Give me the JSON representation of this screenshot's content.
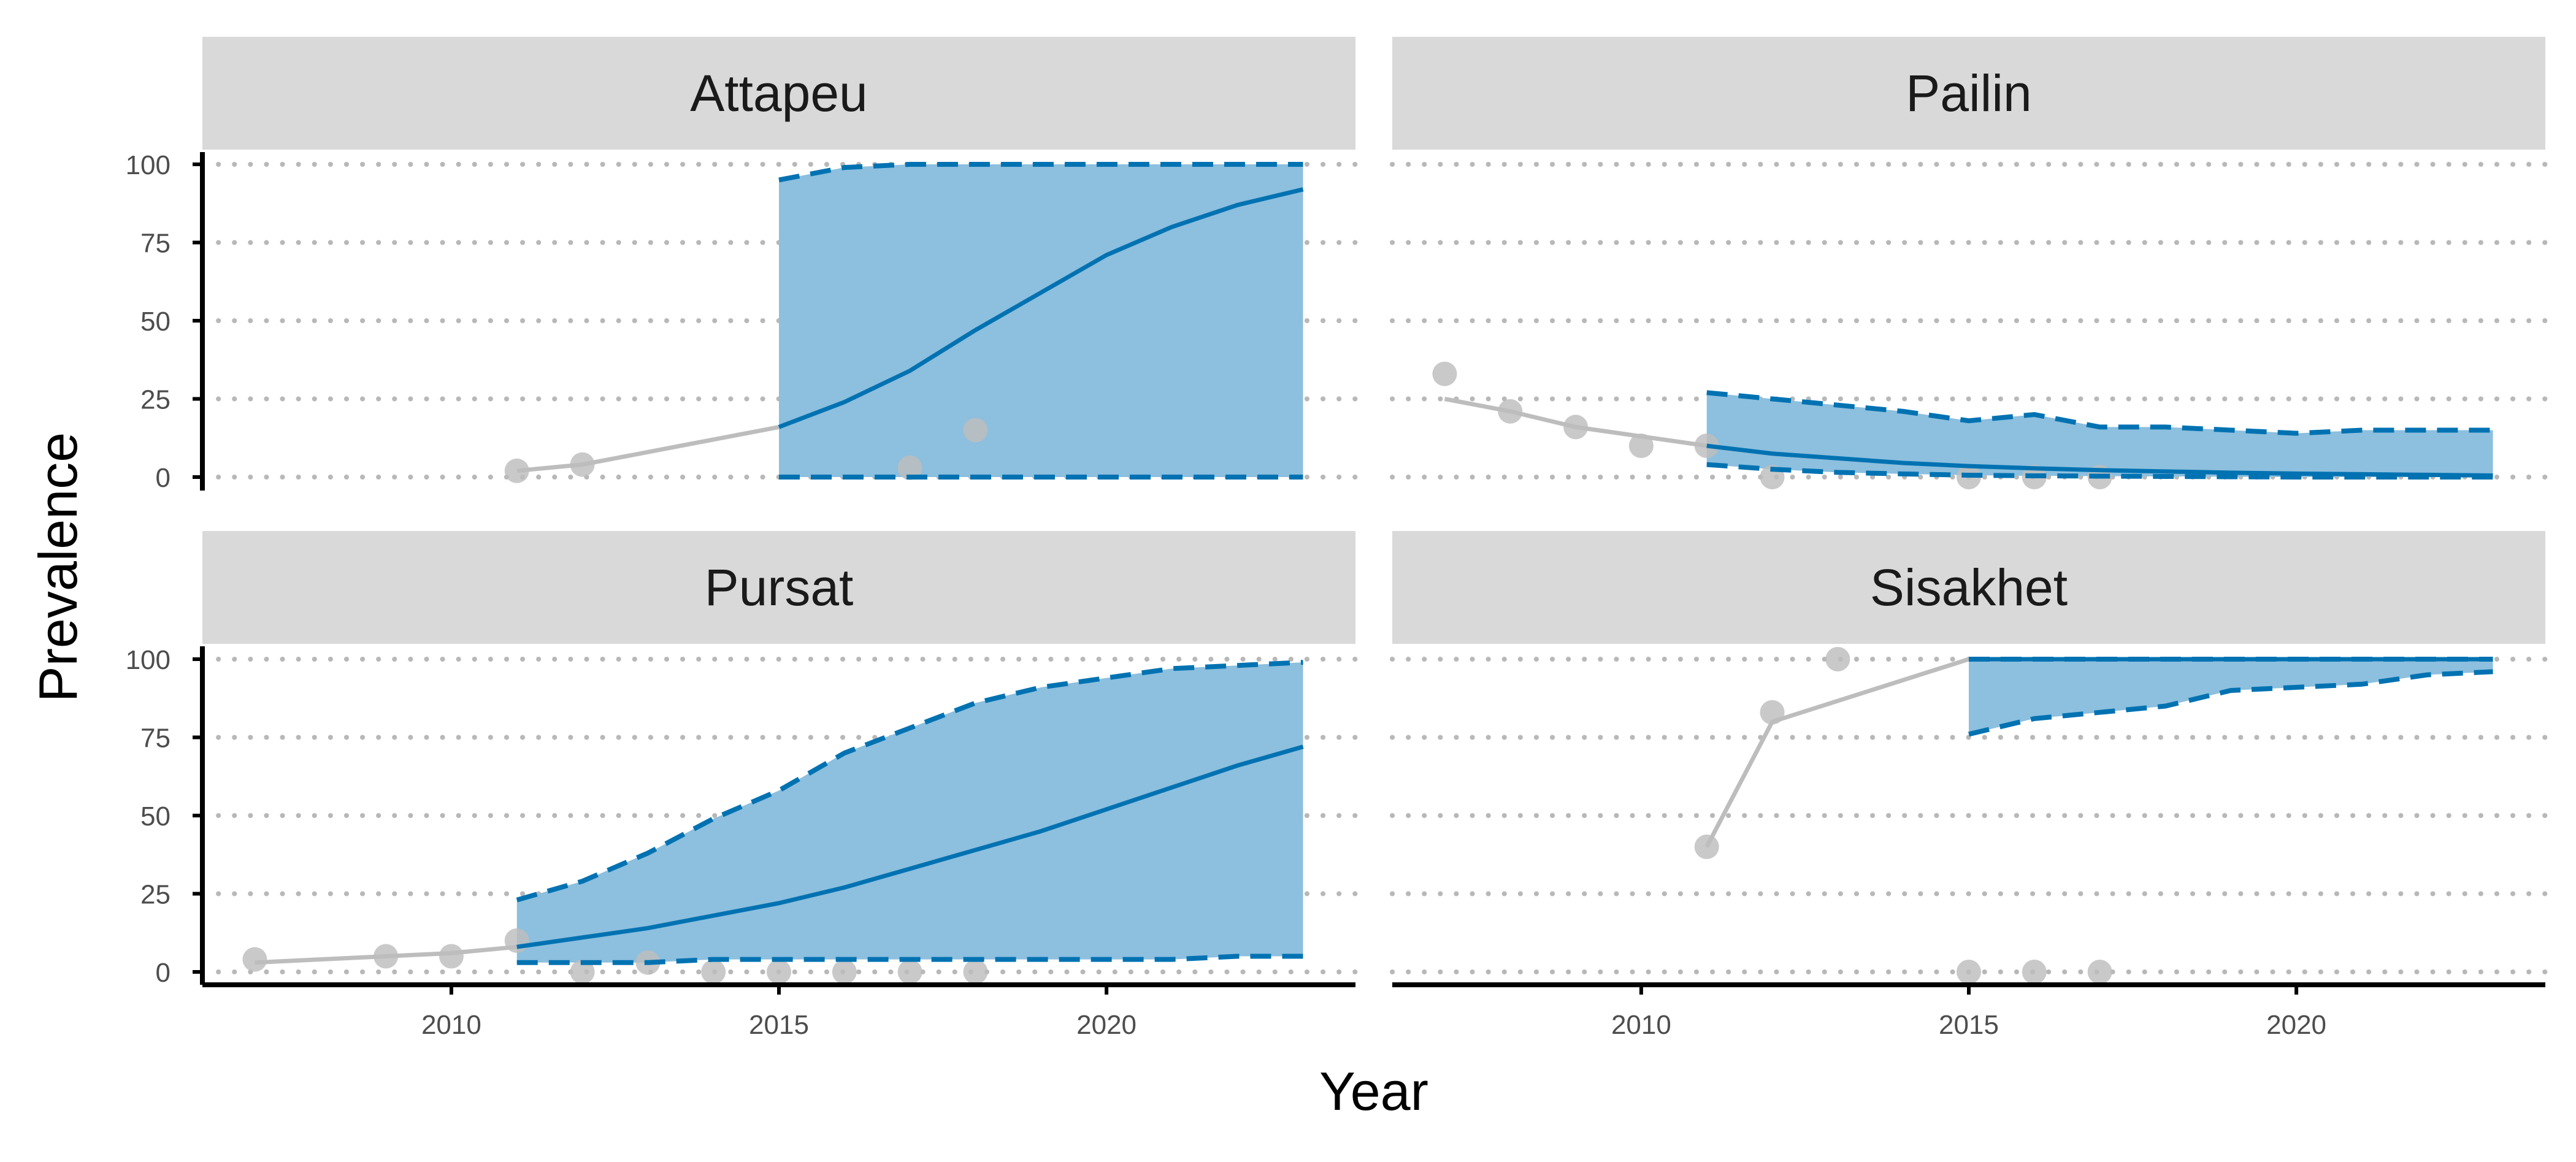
{
  "chart_data": {
    "type": "line",
    "xlabel": "Year",
    "ylabel": "Prevalence",
    "xlim": [
      2006.2,
      2023.8
    ],
    "ylim": [
      0,
      100
    ],
    "x_ticks": [
      2010,
      2015,
      2020
    ],
    "y_ticks": [
      0,
      25,
      50,
      75,
      100
    ],
    "grid": "horizontal dotted",
    "colors": {
      "observed": "#bdbdbd",
      "median": "#0072b2",
      "ribbon": "#8dbfde",
      "strip": "#d9d9d9"
    },
    "panels": [
      {
        "title": "Attapeu",
        "observed_points": [
          [
            2011,
            2
          ],
          [
            2012,
            4
          ],
          [
            2017,
            3
          ],
          [
            2018,
            15
          ]
        ],
        "observed_line": [
          [
            2011,
            2
          ],
          [
            2012,
            4
          ],
          [
            2015,
            16
          ]
        ],
        "projection": {
          "years": [
            2015,
            2016,
            2017,
            2018,
            2019,
            2020,
            2021,
            2022,
            2023
          ],
          "median": [
            16,
            24,
            34,
            47,
            59,
            71,
            80,
            87,
            92
          ],
          "lower": [
            0,
            0,
            0,
            0,
            0,
            0,
            0,
            0,
            0
          ],
          "upper": [
            95,
            99,
            100,
            100,
            100,
            100,
            100,
            100,
            100
          ]
        }
      },
      {
        "title": "Pailin",
        "observed_points": [
          [
            2007,
            33
          ],
          [
            2008,
            21
          ],
          [
            2009,
            16
          ],
          [
            2010,
            10
          ],
          [
            2011,
            10
          ],
          [
            2012,
            0
          ],
          [
            2015,
            0
          ],
          [
            2016,
            0
          ],
          [
            2017,
            0
          ]
        ],
        "observed_line": [
          [
            2007,
            25
          ],
          [
            2008,
            21
          ],
          [
            2009,
            16
          ],
          [
            2010,
            13
          ],
          [
            2011,
            10
          ]
        ],
        "projection": {
          "years": [
            2011,
            2012,
            2013,
            2014,
            2015,
            2016,
            2017,
            2018,
            2019,
            2020,
            2021,
            2022,
            2023
          ],
          "median": [
            10,
            7.5,
            6,
            4.5,
            3.5,
            2.8,
            2.2,
            1.8,
            1.4,
            1.1,
            0.9,
            0.7,
            0.5
          ],
          "lower": [
            4,
            2.5,
            1.5,
            1,
            0.6,
            0.4,
            0.3,
            0.2,
            0.1,
            0,
            0,
            0,
            0
          ],
          "upper": [
            27,
            25,
            23,
            21,
            18,
            20,
            16,
            16,
            15,
            14,
            15,
            15,
            15
          ]
        }
      },
      {
        "title": "Pursat",
        "observed_points": [
          [
            2007,
            4
          ],
          [
            2009,
            5
          ],
          [
            2010,
            5
          ],
          [
            2011,
            10
          ],
          [
            2012,
            0
          ],
          [
            2013,
            3
          ],
          [
            2014,
            0
          ],
          [
            2015,
            0
          ],
          [
            2016,
            0
          ],
          [
            2017,
            0
          ],
          [
            2018,
            0
          ]
        ],
        "observed_line": [
          [
            2007,
            3
          ],
          [
            2008,
            4
          ],
          [
            2009,
            5
          ],
          [
            2010,
            6
          ],
          [
            2011,
            8
          ]
        ],
        "projection": {
          "years": [
            2011,
            2012,
            2013,
            2014,
            2015,
            2016,
            2017,
            2018,
            2019,
            2020,
            2021,
            2022,
            2023
          ],
          "median": [
            8,
            11,
            14,
            18,
            22,
            27,
            33,
            39,
            45,
            52,
            59,
            66,
            72
          ],
          "lower": [
            3,
            3,
            3,
            4,
            4,
            4,
            4,
            4,
            4,
            4,
            4,
            5,
            5
          ],
          "upper": [
            23,
            29,
            38,
            49,
            58,
            70,
            78,
            86,
            91,
            94,
            97,
            98,
            99
          ]
        }
      },
      {
        "title": "Sisakhet",
        "observed_points": [
          [
            2011,
            40
          ],
          [
            2012,
            83
          ],
          [
            2013,
            100
          ],
          [
            2015,
            0
          ],
          [
            2016,
            0
          ],
          [
            2017,
            0
          ]
        ],
        "observed_line": [
          [
            2011,
            40
          ],
          [
            2012,
            80
          ],
          [
            2015,
            100
          ]
        ],
        "projection": {
          "years": [
            2015,
            2016,
            2017,
            2018,
            2019,
            2020,
            2021,
            2022,
            2023
          ],
          "median": [
            100,
            100,
            100,
            100,
            100,
            100,
            100,
            100,
            100
          ],
          "lower": [
            76,
            81,
            83,
            85,
            90,
            91,
            92,
            95,
            96
          ],
          "upper": [
            100,
            100,
            100,
            100,
            100,
            100,
            100,
            100,
            100
          ]
        }
      }
    ]
  }
}
